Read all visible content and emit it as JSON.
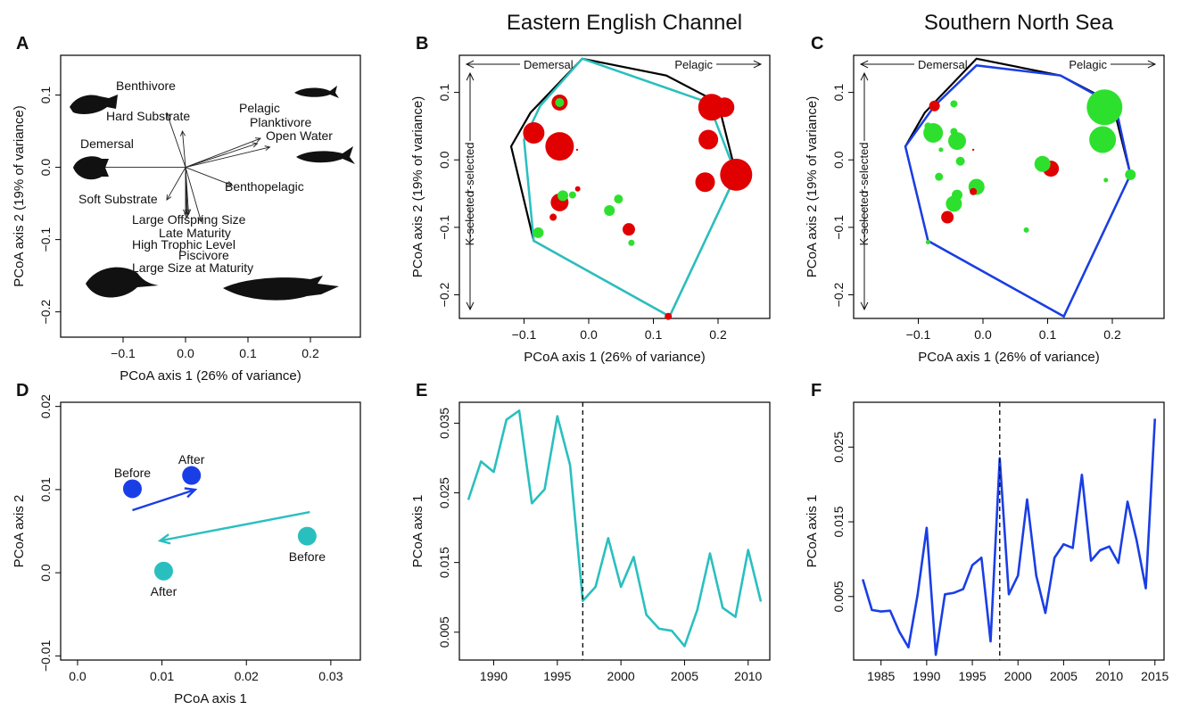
{
  "region_titles": {
    "eec": "Eastern English Channel",
    "sns": "Southern North Sea"
  },
  "chart_data": [
    {
      "panel": "A",
      "type": "scatter",
      "xlabel": "PCoA axis 1 (26% of variance)",
      "ylabel": "PCoA axis 2 (19% of variance)",
      "xlim": [
        -0.2,
        0.28
      ],
      "ylim": [
        -0.235,
        0.155
      ],
      "xticks": [
        -0.1,
        0.0,
        0.1,
        0.2
      ],
      "xtick_labels": [
        "−0.1",
        "0.0",
        "0.1",
        "0.2"
      ],
      "yticks": [
        -0.2,
        -0.1,
        0.0,
        0.1
      ],
      "ytick_labels": [
        "−0.2",
        "−0.1",
        "0.0",
        "0.1"
      ],
      "vectors": [
        {
          "label": "Benthivore",
          "x": -0.03,
          "y": 0.075
        },
        {
          "label": "Hard Substrate",
          "x": -0.005,
          "y": 0.05
        },
        {
          "label": "Pelagic",
          "x": 0.12,
          "y": 0.04
        },
        {
          "label": "Planktivore",
          "x": 0.115,
          "y": 0.033
        },
        {
          "label": "Open Water",
          "x": 0.135,
          "y": 0.028
        },
        {
          "label": "Demersal",
          "x": -0.14,
          "y": 0.0
        },
        {
          "label": "Benthopelagic",
          "x": 0.075,
          "y": -0.025
        },
        {
          "label": "Soft Substrate",
          "x": -0.03,
          "y": -0.045
        },
        {
          "label": "Large Offspring Size",
          "x": 0.005,
          "y": -0.065
        },
        {
          "label": "Late Maturity",
          "x": 0.0,
          "y": -0.065
        },
        {
          "label": "High Trophic Level",
          "x": 0.003,
          "y": -0.065
        },
        {
          "label": "Piscivore",
          "x": 0.025,
          "y": -0.075
        },
        {
          "label": "Large Size at Maturity",
          "x": 0.002,
          "y": -0.07
        }
      ]
    },
    {
      "panel": "B",
      "type": "scatter",
      "xlabel": "PCoA axis 1 (26% of variance)",
      "ylabel": "PCoA axis 2 (19% of variance)",
      "xlim": [
        -0.2,
        0.28
      ],
      "ylim": [
        -0.235,
        0.155
      ],
      "xticks": [
        -0.1,
        0.0,
        0.1,
        0.2
      ],
      "xtick_labels": [
        "−0.1",
        "0.0",
        "0.1",
        "0.2"
      ],
      "yticks": [
        -0.2,
        -0.1,
        0.0,
        0.1
      ],
      "ytick_labels": [
        "−0.2",
        "−0.1",
        "0.0",
        "0.1"
      ],
      "annotations": {
        "demersal": "Demersal",
        "pelagic": "Pelagic",
        "k_selected": "K-selected",
        "r_selected": "r-selected"
      },
      "hull_all": [
        [
          -0.12,
          0.02
        ],
        [
          -0.09,
          0.07
        ],
        [
          -0.01,
          0.15
        ],
        [
          0.12,
          0.125
        ],
        [
          0.2,
          0.085
        ],
        [
          0.228,
          -0.022
        ],
        [
          0.125,
          -0.232
        ],
        [
          -0.085,
          -0.12
        ]
      ],
      "hull_region": [
        [
          -0.1,
          0.03
        ],
        [
          -0.075,
          0.08
        ],
        [
          -0.01,
          0.15
        ],
        [
          0.185,
          0.085
        ],
        [
          0.228,
          -0.022
        ],
        [
          0.125,
          -0.232
        ],
        [
          -0.085,
          -0.12
        ]
      ],
      "hull_region_color": "#2ABFBF",
      "points": [
        {
          "x": -0.045,
          "y": 0.085,
          "size": 9,
          "color": "#e00000"
        },
        {
          "x": -0.045,
          "y": 0.085,
          "size": 5,
          "color": "#2ee02e"
        },
        {
          "x": -0.085,
          "y": 0.04,
          "size": 12,
          "color": "#e00000"
        },
        {
          "x": -0.045,
          "y": 0.02,
          "size": 16,
          "color": "#e00000"
        },
        {
          "x": 0.19,
          "y": 0.078,
          "size": 15,
          "color": "#e00000"
        },
        {
          "x": 0.21,
          "y": 0.078,
          "size": 11,
          "color": "#e00000"
        },
        {
          "x": 0.185,
          "y": 0.03,
          "size": 11,
          "color": "#e00000"
        },
        {
          "x": 0.228,
          "y": -0.022,
          "size": 18,
          "color": "#e00000"
        },
        {
          "x": 0.18,
          "y": -0.033,
          "size": 11,
          "color": "#e00000"
        },
        {
          "x": -0.045,
          "y": -0.063,
          "size": 10,
          "color": "#e00000"
        },
        {
          "x": -0.04,
          "y": -0.053,
          "size": 6,
          "color": "#2ee02e"
        },
        {
          "x": -0.025,
          "y": -0.052,
          "size": 4,
          "color": "#2ee02e"
        },
        {
          "x": -0.017,
          "y": -0.043,
          "size": 3,
          "color": "#e00000"
        },
        {
          "x": -0.055,
          "y": -0.085,
          "size": 4,
          "color": "#e00000"
        },
        {
          "x": -0.078,
          "y": -0.108,
          "size": 6,
          "color": "#2ee02e"
        },
        {
          "x": 0.032,
          "y": -0.075,
          "size": 6,
          "color": "#2ee02e"
        },
        {
          "x": 0.046,
          "y": -0.058,
          "size": 5,
          "color": "#2ee02e"
        },
        {
          "x": 0.062,
          "y": -0.103,
          "size": 7,
          "color": "#e00000"
        },
        {
          "x": 0.066,
          "y": -0.123,
          "size": 3.5,
          "color": "#2ee02e"
        },
        {
          "x": 0.123,
          "y": -0.232,
          "size": 4,
          "color": "#e00000"
        },
        {
          "x": -0.018,
          "y": 0.015,
          "size": 1.2,
          "color": "#e00000"
        }
      ]
    },
    {
      "panel": "C",
      "type": "scatter",
      "xlabel": "PCoA axis 1 (26% of variance)",
      "ylabel": "PCoA axis 2 (19% of variance)",
      "xlim": [
        -0.2,
        0.28
      ],
      "ylim": [
        -0.235,
        0.155
      ],
      "xticks": [
        -0.1,
        0.0,
        0.1,
        0.2
      ],
      "xtick_labels": [
        "−0.1",
        "0.0",
        "0.1",
        "0.2"
      ],
      "yticks": [
        -0.2,
        -0.1,
        0.0,
        0.1
      ],
      "ytick_labels": [
        "−0.2",
        "−0.1",
        "0.0",
        "0.1"
      ],
      "annotations": {
        "demersal": "Demersal",
        "pelagic": "Pelagic",
        "k_selected": "K-selected",
        "r_selected": "r-selected"
      },
      "hull_all": [
        [
          -0.12,
          0.02
        ],
        [
          -0.09,
          0.07
        ],
        [
          -0.01,
          0.15
        ],
        [
          0.12,
          0.125
        ],
        [
          0.2,
          0.085
        ],
        [
          0.228,
          -0.022
        ],
        [
          0.125,
          -0.232
        ],
        [
          -0.085,
          -0.12
        ]
      ],
      "hull_region": [
        [
          -0.12,
          0.02
        ],
        [
          -0.075,
          0.08
        ],
        [
          -0.01,
          0.14
        ],
        [
          0.12,
          0.125
        ],
        [
          0.205,
          0.08
        ],
        [
          0.228,
          -0.022
        ],
        [
          0.125,
          -0.232
        ],
        [
          -0.085,
          -0.12
        ]
      ],
      "hull_region_color": "#1a3ee6",
      "points": [
        {
          "x": -0.075,
          "y": 0.08,
          "size": 6,
          "color": "#e00000"
        },
        {
          "x": -0.045,
          "y": 0.083,
          "size": 4,
          "color": "#2ee02e"
        },
        {
          "x": -0.085,
          "y": 0.05,
          "size": 4,
          "color": "#2ee02e"
        },
        {
          "x": -0.077,
          "y": 0.04,
          "size": 11,
          "color": "#2ee02e"
        },
        {
          "x": -0.04,
          "y": 0.028,
          "size": 10,
          "color": "#2ee02e"
        },
        {
          "x": -0.045,
          "y": 0.042,
          "size": 4,
          "color": "#2ee02e"
        },
        {
          "x": -0.065,
          "y": 0.015,
          "size": 2.5,
          "color": "#2ee02e"
        },
        {
          "x": -0.035,
          "y": -0.002,
          "size": 5,
          "color": "#2ee02e"
        },
        {
          "x": -0.068,
          "y": -0.025,
          "size": 4.5,
          "color": "#2ee02e"
        },
        {
          "x": -0.01,
          "y": -0.04,
          "size": 9,
          "color": "#2ee02e"
        },
        {
          "x": -0.04,
          "y": -0.052,
          "size": 6,
          "color": "#2ee02e"
        },
        {
          "x": -0.045,
          "y": -0.065,
          "size": 9,
          "color": "#2ee02e"
        },
        {
          "x": -0.015,
          "y": -0.047,
          "size": 4,
          "color": "#e00000"
        },
        {
          "x": -0.055,
          "y": -0.085,
          "size": 7,
          "color": "#e00000"
        },
        {
          "x": -0.085,
          "y": -0.122,
          "size": 2.5,
          "color": "#2ee02e"
        },
        {
          "x": 0.105,
          "y": -0.013,
          "size": 9,
          "color": "#e00000"
        },
        {
          "x": 0.092,
          "y": -0.006,
          "size": 9,
          "color": "#2ee02e"
        },
        {
          "x": 0.188,
          "y": 0.078,
          "size": 20,
          "color": "#2ee02e"
        },
        {
          "x": 0.185,
          "y": 0.03,
          "size": 15,
          "color": "#2ee02e"
        },
        {
          "x": 0.205,
          "y": 0.078,
          "size": 4,
          "color": "#2ee02e"
        },
        {
          "x": 0.228,
          "y": -0.022,
          "size": 6,
          "color": "#2ee02e"
        },
        {
          "x": 0.19,
          "y": -0.03,
          "size": 2.5,
          "color": "#2ee02e"
        },
        {
          "x": 0.067,
          "y": -0.104,
          "size": 3,
          "color": "#2ee02e"
        },
        {
          "x": -0.015,
          "y": 0.015,
          "size": 1.2,
          "color": "#e00000"
        }
      ]
    },
    {
      "panel": "D",
      "type": "scatter",
      "xlabel": "PCoA axis 1",
      "ylabel": "PCoA axis 2",
      "xlim": [
        -0.002,
        0.0335
      ],
      "ylim": [
        -0.0105,
        0.0205
      ],
      "xticks": [
        0.0,
        0.01,
        0.02,
        0.03
      ],
      "xtick_labels": [
        "0.0",
        "0.01",
        "0.02",
        "0.03"
      ],
      "yticks": [
        -0.01,
        0.0,
        0.01,
        0.02
      ],
      "ytick_labels": [
        "−0.01",
        "0.0",
        "0.01",
        "0.02"
      ],
      "series": [
        {
          "color": "#1a3ee6",
          "points": [
            {
              "label": "Before",
              "x": 0.0065,
              "y": 0.0101
            },
            {
              "label": "After",
              "x": 0.0135,
              "y": 0.0117
            }
          ]
        },
        {
          "color": "#2ABFBF",
          "points": [
            {
              "label": "Before",
              "x": 0.0272,
              "y": 0.0044
            },
            {
              "label": "After",
              "x": 0.0102,
              "y": 0.0002
            }
          ]
        }
      ]
    },
    {
      "panel": "E",
      "type": "line",
      "xlabel": "",
      "ylabel": "PCoA axis 1",
      "xlim": [
        1987.3,
        2011.7
      ],
      "ylim": [
        0.001,
        0.038
      ],
      "xticks": [
        1990,
        1995,
        2000,
        2005,
        2010
      ],
      "yticks": [
        0.005,
        0.015,
        0.025,
        0.035
      ],
      "ytick_labels": [
        "0.005",
        "0.015",
        "0.025",
        "0.035"
      ],
      "break_year": 1997,
      "color": "#2ABFBF",
      "x": [
        1988,
        1989,
        1990,
        1991,
        1992,
        1993,
        1994,
        1995,
        1996,
        1997,
        1998,
        1999,
        2000,
        2001,
        2002,
        2003,
        2004,
        2005,
        2006,
        2007,
        2008,
        2009,
        2010,
        2011
      ],
      "values": [
        0.024,
        0.0295,
        0.028,
        0.0355,
        0.0368,
        0.0235,
        0.0255,
        0.036,
        0.029,
        0.0095,
        0.0115,
        0.0185,
        0.0115,
        0.0158,
        0.0075,
        0.0055,
        0.0052,
        0.003,
        0.0082,
        0.0163,
        0.0085,
        0.0072,
        0.0168,
        0.0094
      ]
    },
    {
      "panel": "F",
      "type": "line",
      "xlabel": "",
      "ylabel": "PCoA axis 1",
      "xlim": [
        1982,
        2016
      ],
      "ylim": [
        -0.0035,
        0.031
      ],
      "xticks": [
        1985,
        1990,
        1995,
        2000,
        2005,
        2010,
        2015
      ],
      "yticks": [
        0.005,
        0.015,
        0.025
      ],
      "ytick_labels": [
        "0.005",
        "0.015",
        "0.025"
      ],
      "break_year": 1998,
      "color": "#1a3ee6",
      "x": [
        1983,
        1984,
        1985,
        1986,
        1987,
        1988,
        1989,
        1990,
        1991,
        1992,
        1993,
        1994,
        1995,
        1996,
        1997,
        1998,
        1999,
        2000,
        2001,
        2002,
        2003,
        2004,
        2005,
        2006,
        2007,
        2008,
        2009,
        2010,
        2011,
        2012,
        2013,
        2014,
        2015
      ],
      "values": [
        0.0073,
        0.0032,
        0.003,
        0.0031,
        0.0003,
        -0.0018,
        0.0052,
        0.0142,
        -0.0028,
        0.0053,
        0.0055,
        0.006,
        0.0092,
        0.0102,
        -0.001,
        0.0235,
        0.0053,
        0.0078,
        0.018,
        0.0078,
        0.0028,
        0.0102,
        0.012,
        0.0115,
        0.0213,
        0.0098,
        0.0112,
        0.0117,
        0.0095,
        0.0177,
        0.0125,
        0.0061,
        0.0288
      ]
    }
  ]
}
